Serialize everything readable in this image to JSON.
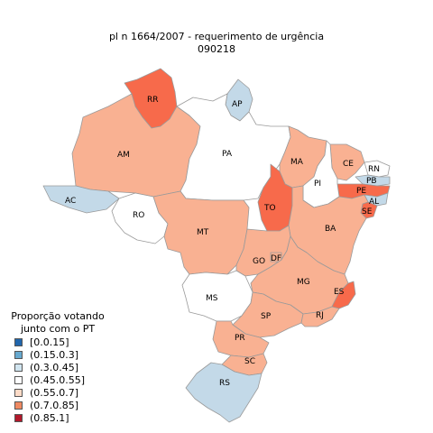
{
  "title": {
    "line1": "pl  n 1664/2007 - requerimento de urgência",
    "line2": "090218"
  },
  "legend": {
    "title_line1": "Proporção votando",
    "title_line2": "junto com o PT",
    "items": [
      {
        "label": "[0.0.15]",
        "color": "#2166ac"
      },
      {
        "label": "(0.15.0.3]",
        "color": "#67a9cf"
      },
      {
        "label": "(0.3.0.45]",
        "color": "#d1e5f0"
      },
      {
        "label": "(0.45.0.55]",
        "color": "#ffffff"
      },
      {
        "label": "(0.55.0.7]",
        "color": "#fddbc7"
      },
      {
        "label": "(0.7.0.85]",
        "color": "#ef8a62"
      },
      {
        "label": "(0.85.1]",
        "color": "#b2182b"
      }
    ]
  },
  "map_colors": {
    "white": "#ffffff",
    "light_blue": "#c3d9e8",
    "light_salmon": "#f9b192",
    "salmon": "#f76a4b"
  },
  "states": [
    {
      "abbr": "RR",
      "fill": "salmon"
    },
    {
      "abbr": "AP",
      "fill": "light_blue"
    },
    {
      "abbr": "AM",
      "fill": "light_salmon"
    },
    {
      "abbr": "PA",
      "fill": "white"
    },
    {
      "abbr": "AC",
      "fill": "light_blue"
    },
    {
      "abbr": "RO",
      "fill": "white"
    },
    {
      "abbr": "MA",
      "fill": "light_salmon"
    },
    {
      "abbr": "CE",
      "fill": "light_salmon"
    },
    {
      "abbr": "RN",
      "fill": "white"
    },
    {
      "abbr": "PB",
      "fill": "light_blue"
    },
    {
      "abbr": "PI",
      "fill": "white"
    },
    {
      "abbr": "PE",
      "fill": "salmon"
    },
    {
      "abbr": "AL",
      "fill": "light_blue"
    },
    {
      "abbr": "SE",
      "fill": "salmon"
    },
    {
      "abbr": "TO",
      "fill": "salmon"
    },
    {
      "abbr": "BA",
      "fill": "light_salmon"
    },
    {
      "abbr": "MT",
      "fill": "light_salmon"
    },
    {
      "abbr": "GO",
      "fill": "light_salmon"
    },
    {
      "abbr": "DF",
      "fill": "light_salmon"
    },
    {
      "abbr": "MG",
      "fill": "light_salmon"
    },
    {
      "abbr": "ES",
      "fill": "salmon"
    },
    {
      "abbr": "MS",
      "fill": "white"
    },
    {
      "abbr": "SP",
      "fill": "light_salmon"
    },
    {
      "abbr": "RJ",
      "fill": "light_salmon"
    },
    {
      "abbr": "PR",
      "fill": "light_salmon"
    },
    {
      "abbr": "SC",
      "fill": "light_salmon"
    },
    {
      "abbr": "RS",
      "fill": "light_blue"
    }
  ]
}
